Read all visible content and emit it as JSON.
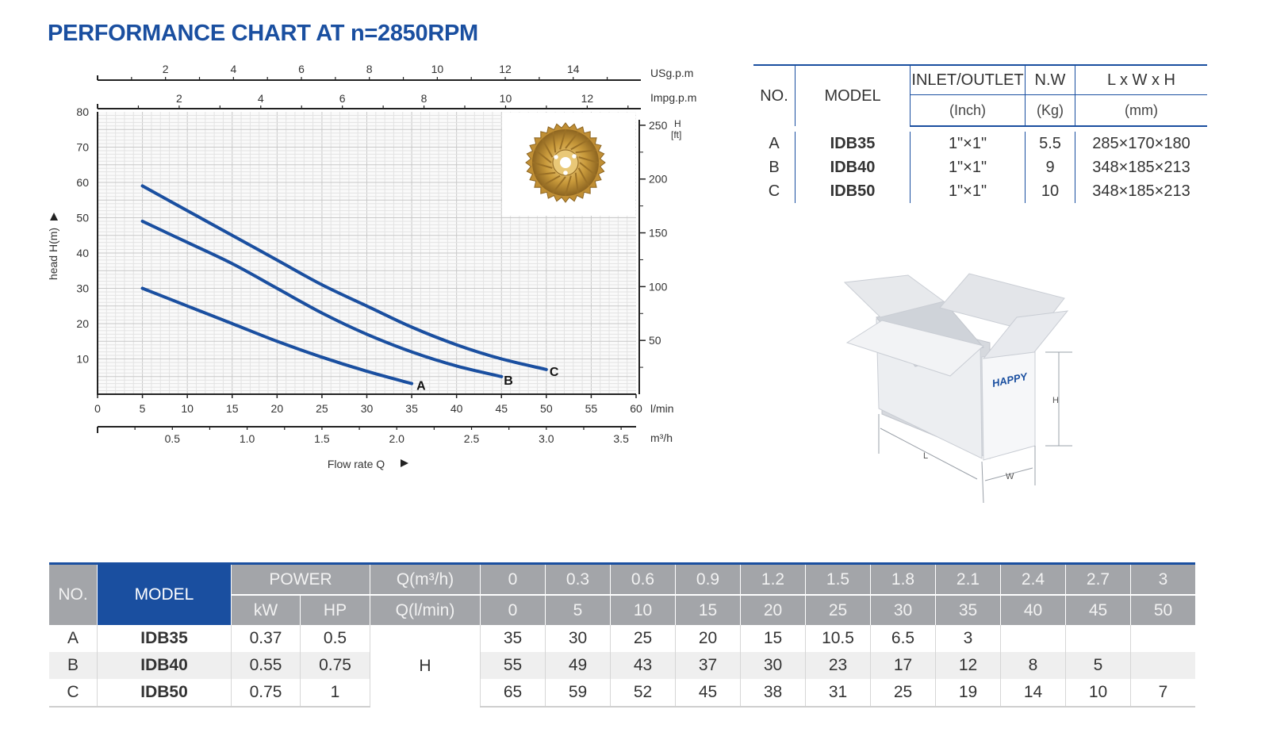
{
  "title": "PERFORMANCE CHART AT n=2850RPM",
  "chart_data": {
    "type": "line",
    "ylabel": "head H(m)",
    "xlabel": "Flow rate Q",
    "x_unit_main": "l/min",
    "x_unit_m3h": "m³/h",
    "top_unit_us": "USg.p.m",
    "top_unit_imp": "Impg.p.m",
    "right_unit_h": "H",
    "right_unit_ft": "[ft]",
    "ylim": [
      0,
      80
    ],
    "xlim": [
      0,
      60
    ],
    "y_ticks": [
      "10",
      "20",
      "30",
      "40",
      "50",
      "60",
      "70",
      "80"
    ],
    "x_ticks": [
      "0",
      "5",
      "10",
      "15",
      "20",
      "25",
      "30",
      "35",
      "40",
      "45",
      "50",
      "55",
      "60"
    ],
    "m3h_ticks": [
      "0.5",
      "1.0",
      "1.5",
      "2.0",
      "2.5",
      "3.0",
      "3.5"
    ],
    "us_ticks": [
      "2",
      "4",
      "6",
      "8",
      "10",
      "12",
      "14"
    ],
    "imp_ticks": [
      "2",
      "4",
      "6",
      "8",
      "10",
      "12"
    ],
    "ft_ticks": [
      "250",
      "200",
      "150",
      "100",
      "50"
    ],
    "series": [
      {
        "name": "A",
        "x": [
          5,
          10,
          15,
          20,
          25,
          30,
          35
        ],
        "y": [
          30,
          25,
          20,
          15,
          10.5,
          6.5,
          3
        ],
        "color": "#1a4fa0"
      },
      {
        "name": "B",
        "x": [
          5,
          10,
          15,
          20,
          25,
          30,
          35,
          40,
          45
        ],
        "y": [
          49,
          43,
          37,
          30,
          23,
          17,
          12,
          8,
          5
        ],
        "color": "#1a4fa0"
      },
      {
        "name": "C",
        "x": [
          5,
          10,
          15,
          20,
          25,
          30,
          35,
          40,
          45,
          50
        ],
        "y": [
          59,
          52,
          45,
          38,
          31,
          25,
          19,
          14,
          10,
          7
        ],
        "color": "#1a4fa0"
      }
    ],
    "grid": true,
    "image": "impeller-photo"
  },
  "spec_table": {
    "headers": {
      "no": "NO.",
      "model": "MODEL",
      "io": "INLET/OUTLET",
      "nw": "N.W",
      "dims": "L x W x H"
    },
    "units": {
      "io": "(Inch)",
      "nw": "(Kg)",
      "dims": "(mm)"
    },
    "rows": [
      {
        "no": "A",
        "model": "IDB35",
        "io": "1\"×1\"",
        "nw": "5.5",
        "dims": "285×170×180"
      },
      {
        "no": "B",
        "model": "IDB40",
        "io": "1\"×1\"",
        "nw": "9",
        "dims": "348×185×213"
      },
      {
        "no": "C",
        "model": "IDB50",
        "io": "1\"×1\"",
        "nw": "10",
        "dims": "348×185×213"
      }
    ]
  },
  "box": {
    "brand": "HAPPY",
    "label_h": "H",
    "label_l": "L",
    "label_w": "W"
  },
  "data_table": {
    "headers": {
      "no": "NO.",
      "model": "MODEL",
      "power": "POWER",
      "q_m3h": "Q(m³/h)",
      "kw": "kW",
      "hp": "HP",
      "q_lmin": "Q(l/min)",
      "h": "H"
    },
    "q_m3h_values": [
      "0",
      "0.3",
      "0.6",
      "0.9",
      "1.2",
      "1.5",
      "1.8",
      "2.1",
      "2.4",
      "2.7",
      "3"
    ],
    "q_lmin_values": [
      "0",
      "5",
      "10",
      "15",
      "20",
      "25",
      "30",
      "35",
      "40",
      "45",
      "50"
    ],
    "rows": [
      {
        "no": "A",
        "model": "IDB35",
        "kw": "0.37",
        "hp": "0.5",
        "h": [
          "35",
          "30",
          "25",
          "20",
          "15",
          "10.5",
          "6.5",
          "3",
          "",
          "",
          ""
        ]
      },
      {
        "no": "B",
        "model": "IDB40",
        "kw": "0.55",
        "hp": "0.75",
        "h": [
          "55",
          "49",
          "43",
          "37",
          "30",
          "23",
          "17",
          "12",
          "8",
          "5",
          ""
        ]
      },
      {
        "no": "C",
        "model": "IDB50",
        "kw": "0.75",
        "hp": "1",
        "h": [
          "65",
          "59",
          "52",
          "45",
          "38",
          "31",
          "25",
          "19",
          "14",
          "10",
          "7"
        ]
      }
    ]
  }
}
